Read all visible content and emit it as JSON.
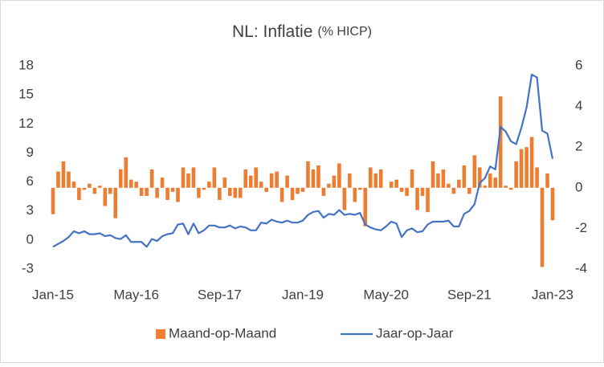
{
  "chart_data": {
    "type": "bar-line",
    "title": "NL: Inflatie",
    "subtitle": "(% HICP)",
    "categories": [
      "Jan-15",
      null,
      null,
      null,
      null,
      null,
      null,
      null,
      null,
      null,
      null,
      null,
      null,
      null,
      null,
      null,
      "May-16",
      null,
      null,
      null,
      null,
      null,
      null,
      null,
      null,
      null,
      null,
      null,
      null,
      null,
      null,
      null,
      "Sep-17",
      null,
      null,
      null,
      null,
      null,
      null,
      null,
      null,
      null,
      null,
      null,
      null,
      null,
      null,
      null,
      "Jan-19",
      null,
      null,
      null,
      null,
      null,
      null,
      null,
      null,
      null,
      null,
      null,
      null,
      null,
      null,
      null,
      "May-20",
      null,
      null,
      null,
      null,
      null,
      null,
      null,
      null,
      null,
      null,
      null,
      null,
      null,
      null,
      null,
      "Sep-21",
      null,
      null,
      null,
      null,
      null,
      null,
      null,
      null,
      null,
      null,
      null,
      null,
      null,
      null,
      null,
      "Jan-23"
    ],
    "series": [
      {
        "name": "Maand-op-Maand",
        "type": "bar",
        "axis": "y2",
        "color": "#ED7D31",
        "values": [
          -1.3,
          0.8,
          1.3,
          0.8,
          0.3,
          -0.6,
          -0.1,
          0.2,
          -0.3,
          0.1,
          -0.9,
          -0.3,
          -1.5,
          0.9,
          1.5,
          0.4,
          0.3,
          -0.4,
          -0.4,
          0.9,
          -0.5,
          0.5,
          -0.6,
          -0.2,
          -0.7,
          1.0,
          0.7,
          1.0,
          -0.5,
          -0.1,
          0.3,
          1.0,
          -0.6,
          0.5,
          -0.4,
          -0.5,
          -0.5,
          0.9,
          0.6,
          1.0,
          0.3,
          -0.2,
          0.7,
          0.8,
          -0.7,
          0.6,
          -0.6,
          -0.3,
          -0.2,
          1.3,
          0.9,
          1.1,
          -0.4,
          0.2,
          0.6,
          1.2,
          -1.1,
          0.7,
          -0.7,
          -0.1,
          -1.9,
          1.0,
          0.7,
          0.9,
          0.0,
          0.3,
          0.4,
          -0.2,
          -0.4,
          0.9,
          -1.1,
          -0.4,
          -1.2,
          1.3,
          0.7,
          0.9,
          0.2,
          -0.3,
          0.4,
          1.1,
          -0.3,
          1.6,
          1.0,
          0.1,
          0.7,
          0.5,
          4.5,
          0.1,
          -0.1,
          1.3,
          1.9,
          2.0,
          2.5,
          1.0,
          -3.9,
          0.7,
          -1.6
        ]
      },
      {
        "name": "Jaar-op-Jaar",
        "type": "line",
        "axis": "y",
        "color": "#4472C4",
        "values": [
          -0.7,
          -0.4,
          -0.1,
          0.3,
          0.9,
          0.7,
          0.9,
          0.6,
          0.6,
          0.7,
          0.4,
          0.5,
          0.2,
          0.1,
          0.5,
          -0.2,
          -0.2,
          -0.2,
          -0.7,
          0.1,
          -0.1,
          0.4,
          0.6,
          0.7,
          1.6,
          1.7,
          0.6,
          1.7,
          0.7,
          1.0,
          1.5,
          1.5,
          1.3,
          1.3,
          1.5,
          1.2,
          1.4,
          1.3,
          1.0,
          1.0,
          1.8,
          1.7,
          2.1,
          1.9,
          1.8,
          2.0,
          1.8,
          1.8,
          2.0,
          2.6,
          2.9,
          3.0,
          2.3,
          2.7,
          2.6,
          3.1,
          2.6,
          2.7,
          2.6,
          2.8,
          1.6,
          1.3,
          1.1,
          1.0,
          1.4,
          1.9,
          1.7,
          0.3,
          1.0,
          1.2,
          0.8,
          0.9,
          1.6,
          1.9,
          1.9,
          1.9,
          2.0,
          1.4,
          1.4,
          2.7,
          3.0,
          3.7,
          5.9,
          6.4,
          7.6,
          7.3,
          11.7,
          11.2,
          10.2,
          9.9,
          11.6,
          13.7,
          17.1,
          16.8,
          11.3,
          11.0,
          8.4
        ]
      }
    ],
    "ylim": [
      -3,
      18
    ],
    "yticks": [
      -3,
      0,
      3,
      6,
      9,
      12,
      15,
      18
    ],
    "y2lim": [
      -4,
      6
    ],
    "y2ticks": [
      -4,
      -2,
      0,
      2,
      4,
      6
    ],
    "grid": false,
    "legend": "bottom"
  }
}
